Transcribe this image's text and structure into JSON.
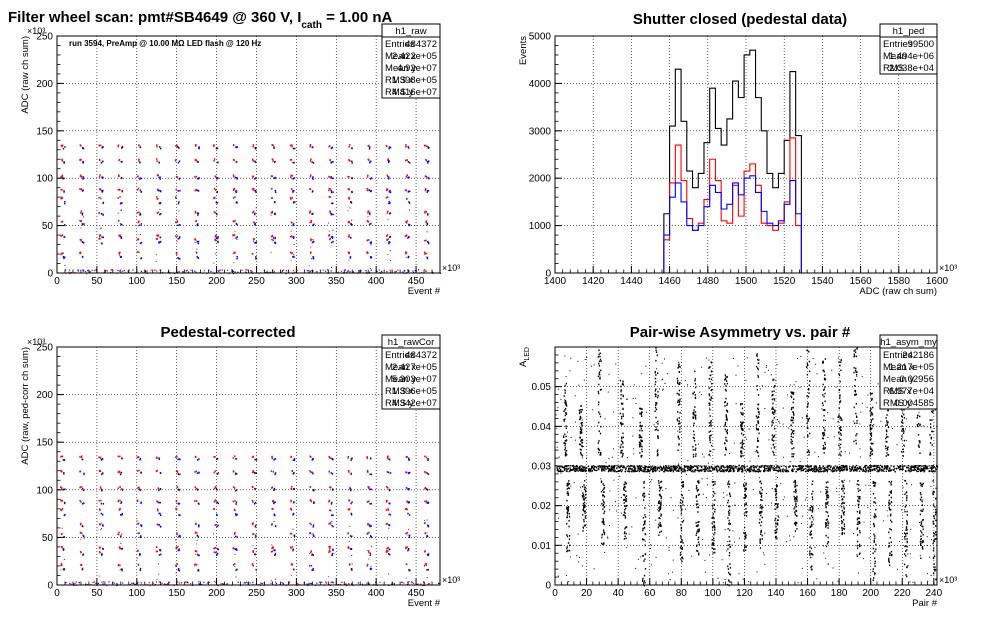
{
  "main_title": {
    "prefix": "Filter wheel scan: pmt#SB4649 @   360 V, I",
    "sub": "cath",
    "suffix": " = 1.00 nA"
  },
  "colors": {
    "red": "#ff0000",
    "blue": "#0000ff",
    "black": "#000000",
    "grid": "#000000"
  },
  "chart_data": [
    {
      "id": "raw",
      "type": "scatter",
      "title": "",
      "xlabel": "Event #",
      "ylabel": "ADC (raw ch sum)",
      "x_exponent": "×10³",
      "y_exponent": "×10³",
      "xlim": [
        0,
        480
      ],
      "ylim": [
        0,
        250
      ],
      "xticks": [
        0,
        50,
        100,
        150,
        200,
        250,
        300,
        350,
        400,
        450
      ],
      "yticks": [
        0,
        50,
        100,
        150,
        200,
        250
      ],
      "grid": true,
      "annotation": "run 3594, PreAmp @ 10.00 MΩ LED flash @  120 Hz",
      "series": [
        {
          "color": "red",
          "bands": [
            135,
            120,
            103,
            89,
            80,
            65,
            55,
            40,
            36,
            22
          ]
        },
        {
          "color": "blue",
          "bands": [
            133,
            118,
            101,
            87,
            75,
            63,
            52,
            38,
            33,
            17
          ]
        }
      ],
      "period": 24,
      "stats": {
        "name": "h1_raw",
        "rows": [
          [
            "Entries",
            "484372"
          ],
          [
            "Mean x",
            "2.422e+05"
          ],
          [
            "Mean y",
            "4.92e+07"
          ],
          [
            "RMS x",
            "1.398e+05"
          ],
          [
            "RMS y",
            "4.416e+07"
          ]
        ]
      }
    },
    {
      "id": "ped",
      "type": "line",
      "title": "Shutter closed (pedestal data)",
      "xlabel": "ADC (raw ch sum)",
      "ylabel": "Events",
      "x_exponent": "×10³",
      "xlim": [
        1400,
        1600
      ],
      "ylim": [
        0,
        5000
      ],
      "xticks": [
        1400,
        1420,
        1440,
        1460,
        1480,
        1500,
        1520,
        1540,
        1560,
        1580,
        1600
      ],
      "yticks": [
        0,
        1000,
        2000,
        3000,
        4000,
        5000
      ],
      "grid": true,
      "x": [
        1457,
        1460,
        1463,
        1466,
        1469,
        1472,
        1475,
        1478,
        1481,
        1484,
        1487,
        1490,
        1493,
        1496,
        1499,
        1502,
        1505,
        1508,
        1511,
        1514,
        1517,
        1520,
        1523,
        1526,
        1529
      ],
      "series": [
        {
          "color": "black",
          "values": [
            1250,
            3100,
            4300,
            3200,
            2150,
            1800,
            2100,
            2750,
            3900,
            3050,
            2700,
            3250,
            4050,
            3700,
            4600,
            4700,
            3700,
            3000,
            2100,
            1800,
            2100,
            2800,
            4250,
            2900,
            0
          ]
        },
        {
          "color": "red",
          "values": [
            700,
            1900,
            2700,
            1950,
            1150,
            900,
            1050,
            1550,
            2400,
            1950,
            1100,
            1050,
            1850,
            1200,
            2150,
            2300,
            1850,
            1050,
            1000,
            900,
            1050,
            1500,
            2850,
            1000,
            0
          ]
        },
        {
          "color": "blue",
          "values": [
            800,
            1600,
            1900,
            1500,
            1000,
            900,
            1000,
            1400,
            1850,
            1700,
            1350,
            1450,
            1900,
            1650,
            2000,
            2050,
            1700,
            1300,
            1050,
            1000,
            1100,
            1450,
            1950,
            1250,
            0
          ]
        }
      ],
      "stats": {
        "name": "h1_ped",
        "rows": [
          [
            "Entries",
            "99500"
          ],
          [
            "Mean",
            "1.494e+06"
          ],
          [
            "RMS",
            "2.038e+04"
          ]
        ]
      }
    },
    {
      "id": "rawCor",
      "type": "scatter",
      "title": "Pedestal-corrected",
      "xlabel": "Event #",
      "ylabel": "ADC (raw, ped-corr ch sum)",
      "x_exponent": "×10³",
      "y_exponent": "×10³",
      "xlim": [
        0,
        480
      ],
      "ylim": [
        0,
        250
      ],
      "xticks": [
        0,
        50,
        100,
        150,
        200,
        250,
        300,
        350,
        400,
        450
      ],
      "yticks": [
        0,
        50,
        100,
        150,
        200,
        250
      ],
      "grid": true,
      "series": [
        {
          "color": "red",
          "bands": [
            135,
            120,
            103,
            89,
            80,
            65,
            55,
            40,
            36,
            22
          ]
        },
        {
          "color": "blue",
          "bands": [
            133,
            118,
            101,
            87,
            75,
            63,
            52,
            38,
            33,
            17
          ]
        }
      ],
      "period": 24,
      "stats": {
        "name": "h1_rawCor",
        "rows": [
          [
            "Entries",
            "484372"
          ],
          [
            "Mean x",
            "2.427e+05"
          ],
          [
            "Mean y",
            "5.303e+07"
          ],
          [
            "RMS x",
            "1.396e+05"
          ],
          [
            "RMS y",
            "4.342e+07"
          ]
        ]
      }
    },
    {
      "id": "asym",
      "type": "scatter",
      "title": "Pair-wise Asymmetry vs. pair #",
      "xlabel": "Pair #",
      "ylabel": "A",
      "ylabel_sub": "LED",
      "x_exponent": "×10³",
      "xlim": [
        0,
        242
      ],
      "ylim": [
        0,
        0.06
      ],
      "xticks": [
        0,
        20,
        40,
        60,
        80,
        100,
        120,
        140,
        160,
        180,
        200,
        220,
        240
      ],
      "yticks": [
        0,
        0.01,
        0.02,
        0.03,
        0.04,
        0.05
      ],
      "grid": true,
      "baseline": 0.0295,
      "burst_x": [
        6,
        16,
        28,
        42,
        54,
        64,
        78,
        88,
        98,
        108,
        118,
        128,
        138,
        150,
        160,
        170,
        180,
        190,
        200,
        210,
        220,
        230,
        238
      ],
      "stats": {
        "name": "h1_asym_my",
        "rows": [
          [
            "Entries",
            "242186"
          ],
          [
            "Mean x",
            "1.217e+05"
          ],
          [
            "Mean y",
            "0.02956"
          ],
          [
            "RMS x",
            "6.977e+04"
          ],
          [
            "RMS y",
            "0.004585"
          ]
        ]
      }
    }
  ]
}
